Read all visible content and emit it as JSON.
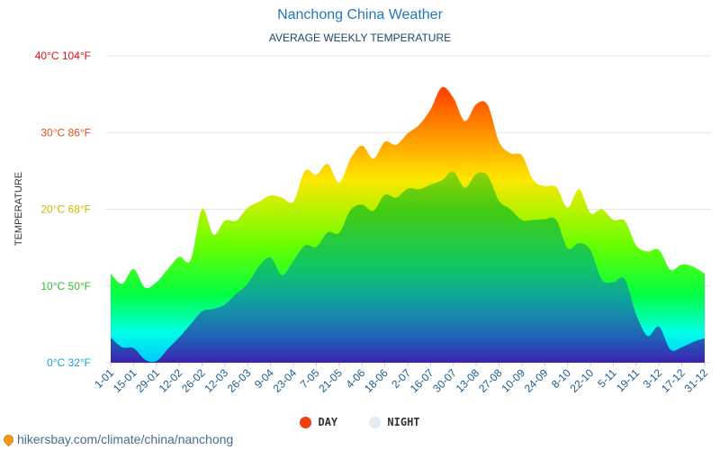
{
  "header": {
    "title": "Nanchong China Weather",
    "subtitle": "AVERAGE WEEKLY TEMPERATURE"
  },
  "footer": {
    "source": "hikersbay.com/climate/china/nanchong"
  },
  "colors": {
    "day_legend": "#f04010",
    "night_legend": "#e4ecf2",
    "title": "#2277bb"
  },
  "chart_data": {
    "type": "area",
    "title": "Nanchong China Weather",
    "subtitle": "AVERAGE WEEKLY TEMPERATURE",
    "ylabel": "TEMPERATURE",
    "xlabel": "",
    "ylim": [
      0,
      40
    ],
    "grid": true,
    "legend": "bottom-center",
    "y_ticks": [
      {
        "value": 0,
        "label": "0°C 32°F",
        "color": "#1aa3d9"
      },
      {
        "value": 10,
        "label": "10°C 50°F",
        "color": "#33bb33"
      },
      {
        "value": 20,
        "label": "20°C 68°F",
        "color": "#d4b800"
      },
      {
        "value": 30,
        "label": "30°C 86°F",
        "color": "#e8501a"
      },
      {
        "value": 40,
        "label": "40°C 104°F",
        "color": "#e01010"
      }
    ],
    "x_tick_labels": [
      "1-01",
      "15-01",
      "29-01",
      "12-02",
      "26-02",
      "12-03",
      "26-03",
      "9-04",
      "23-04",
      "7-05",
      "21-05",
      "4-06",
      "18-06",
      "2-07",
      "16-07",
      "30-07",
      "13-08",
      "27-08",
      "10-09",
      "24-09",
      "8-10",
      "22-10",
      "5-11",
      "19-11",
      "3-12",
      "17-12",
      "31-12"
    ],
    "x_weeks": [
      0,
      1,
      2,
      3,
      4,
      5,
      6,
      7,
      8,
      9,
      10,
      11,
      12,
      13,
      14,
      15,
      16,
      17,
      18,
      19,
      20,
      21,
      22,
      23,
      24,
      25,
      26,
      27,
      28,
      29,
      30,
      31,
      32,
      33,
      34,
      35,
      36,
      37,
      38,
      39,
      40,
      41,
      42,
      43,
      44,
      45,
      46,
      47,
      48,
      49,
      50,
      51,
      52
    ],
    "series": [
      {
        "name": "DAY",
        "values": [
          11.6,
          10.3,
          12.2,
          9.8,
          10.5,
          12.2,
          13.8,
          13.4,
          20.0,
          16.7,
          18.5,
          18.5,
          20.2,
          21.0,
          21.8,
          21.5,
          21.0,
          25.0,
          24.5,
          25.9,
          23.5,
          26.6,
          28.3,
          26.6,
          28.8,
          28.4,
          29.9,
          31.0,
          33.0,
          35.9,
          34.5,
          31.5,
          33.7,
          33.6,
          28.8,
          27.3,
          27.0,
          23.8,
          23.0,
          22.9,
          20.2,
          22.6,
          19.5,
          20.0,
          18.6,
          18.5,
          15.3,
          14.5,
          14.7,
          12.1,
          12.8,
          12.5,
          11.6
        ]
      },
      {
        "name": "NIGHT",
        "values": [
          3.3,
          2.0,
          1.9,
          0.4,
          0.2,
          1.8,
          3.3,
          5.0,
          6.7,
          7.0,
          7.6,
          9.0,
          10.3,
          12.6,
          13.7,
          11.4,
          13.3,
          15.3,
          15.1,
          17.0,
          16.9,
          19.9,
          20.6,
          19.8,
          21.9,
          21.5,
          22.7,
          22.6,
          23.2,
          23.8,
          24.9,
          22.8,
          24.6,
          24.4,
          21.1,
          20.0,
          18.6,
          18.6,
          18.7,
          18.6,
          14.9,
          15.6,
          14.7,
          10.8,
          10.5,
          10.9,
          6.3,
          3.5,
          4.7,
          1.7,
          2.0,
          2.7,
          3.2
        ]
      }
    ]
  }
}
